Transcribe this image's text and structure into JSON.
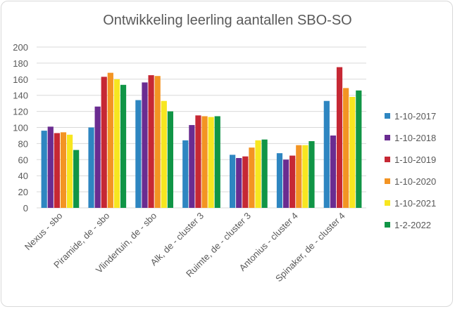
{
  "chart_data": {
    "type": "bar",
    "title": "Ontwikkeling leerling aantallen SBO-SO",
    "categories": [
      "Nexus - sbo",
      "Piramide, de - sbo",
      "Vlindertuin, de - sbo",
      "Alk, de - cluster 3",
      "Ruimte, de - cluster 3",
      "Antonius - cluster 4",
      "Spinaker, de - cluster 4"
    ],
    "series": [
      {
        "name": "1-10-2017",
        "color": "#2e86c1",
        "values": [
          96,
          100,
          134,
          84,
          66,
          68,
          133
        ]
      },
      {
        "name": "1-10-2018",
        "color": "#6a2c91",
        "values": [
          101,
          126,
          156,
          103,
          62,
          60,
          90
        ]
      },
      {
        "name": "1-10-2019",
        "color": "#c62834",
        "values": [
          93,
          163,
          165,
          115,
          64,
          65,
          175
        ]
      },
      {
        "name": "1-10-2020",
        "color": "#f39423",
        "values": [
          94,
          168,
          164,
          114,
          75,
          78,
          149
        ]
      },
      {
        "name": "1-10-2021",
        "color": "#f7e620",
        "values": [
          91,
          160,
          133,
          113,
          84,
          78,
          138
        ]
      },
      {
        "name": "1-2-2022",
        "color": "#109546",
        "values": [
          72,
          153,
          120,
          114,
          85,
          83,
          146
        ]
      }
    ],
    "ylim": [
      0,
      200
    ],
    "yticks": [
      0,
      20,
      40,
      60,
      80,
      100,
      120,
      140,
      160,
      180,
      200
    ],
    "grid": true,
    "legend_position": "right",
    "xlabel": "",
    "ylabel": ""
  }
}
